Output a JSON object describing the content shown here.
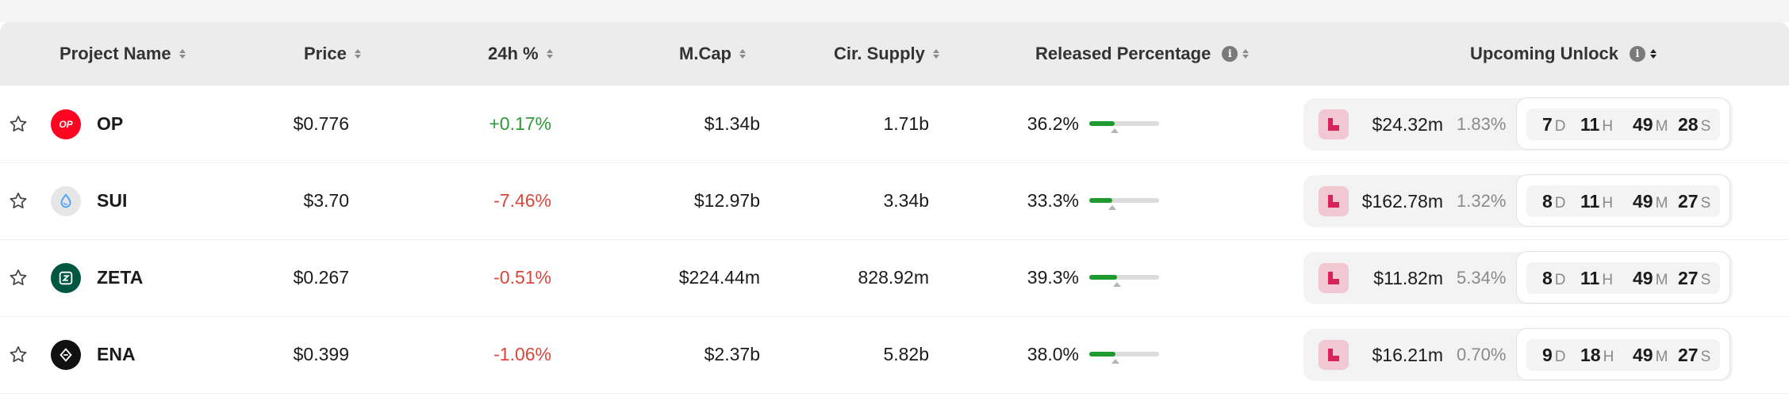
{
  "header": {
    "project_name": "Project Name",
    "price": "Price",
    "change_24h": "24h %",
    "mcap": "M.Cap",
    "cir_supply": "Cir. Supply",
    "released_percentage": "Released Percentage",
    "upcoming_unlock": "Upcoming Unlock",
    "info_glyph": "i"
  },
  "rows": [
    {
      "symbol": "OP",
      "logo_text": "OP",
      "logo_color": "#ff0420",
      "price": "$0.776",
      "change": "+0.17%",
      "change_dir": "up",
      "mcap": "$1.34b",
      "supply": "1.71b",
      "released": "36.2%",
      "released_fraction": 0.362,
      "unlock_value": "$24.32m",
      "unlock_pct": "1.83%",
      "countdown": {
        "d": "7",
        "h": "11",
        "m": "49",
        "s": "28"
      }
    },
    {
      "symbol": "SUI",
      "logo_text": "",
      "logo_color": "#e6e6e6",
      "price": "$3.70",
      "change": "-7.46%",
      "change_dir": "down",
      "mcap": "$12.97b",
      "supply": "3.34b",
      "released": "33.3%",
      "released_fraction": 0.333,
      "unlock_value": "$162.78m",
      "unlock_pct": "1.32%",
      "countdown": {
        "d": "8",
        "h": "11",
        "m": "49",
        "s": "27"
      }
    },
    {
      "symbol": "ZETA",
      "logo_text": "",
      "logo_color": "#005741",
      "price": "$0.267",
      "change": "-0.51%",
      "change_dir": "down",
      "mcap": "$224.44m",
      "supply": "828.92m",
      "released": "39.3%",
      "released_fraction": 0.393,
      "unlock_value": "$11.82m",
      "unlock_pct": "5.34%",
      "countdown": {
        "d": "8",
        "h": "11",
        "m": "49",
        "s": "27"
      }
    },
    {
      "symbol": "ENA",
      "logo_text": "",
      "logo_color": "#111111",
      "price": "$0.399",
      "change": "-1.06%",
      "change_dir": "down",
      "mcap": "$2.37b",
      "supply": "5.82b",
      "released": "38.0%",
      "released_fraction": 0.38,
      "unlock_value": "$16.21m",
      "unlock_pct": "0.70%",
      "countdown": {
        "d": "9",
        "h": "18",
        "m": "49",
        "s": "27"
      }
    }
  ],
  "units": {
    "d": "D",
    "h": "H",
    "m": "M",
    "s": "S"
  },
  "colors": {
    "positive": "#2e9b3a",
    "negative": "#d9473b",
    "bar_fill": "#1f9a2f",
    "unlock_token_bg": "#f1c7d2",
    "unlock_token_fg": "#d6245a"
  },
  "icons": {
    "favorite": "star-outline-icon",
    "info": "info-icon",
    "sort": "sort-icon"
  }
}
